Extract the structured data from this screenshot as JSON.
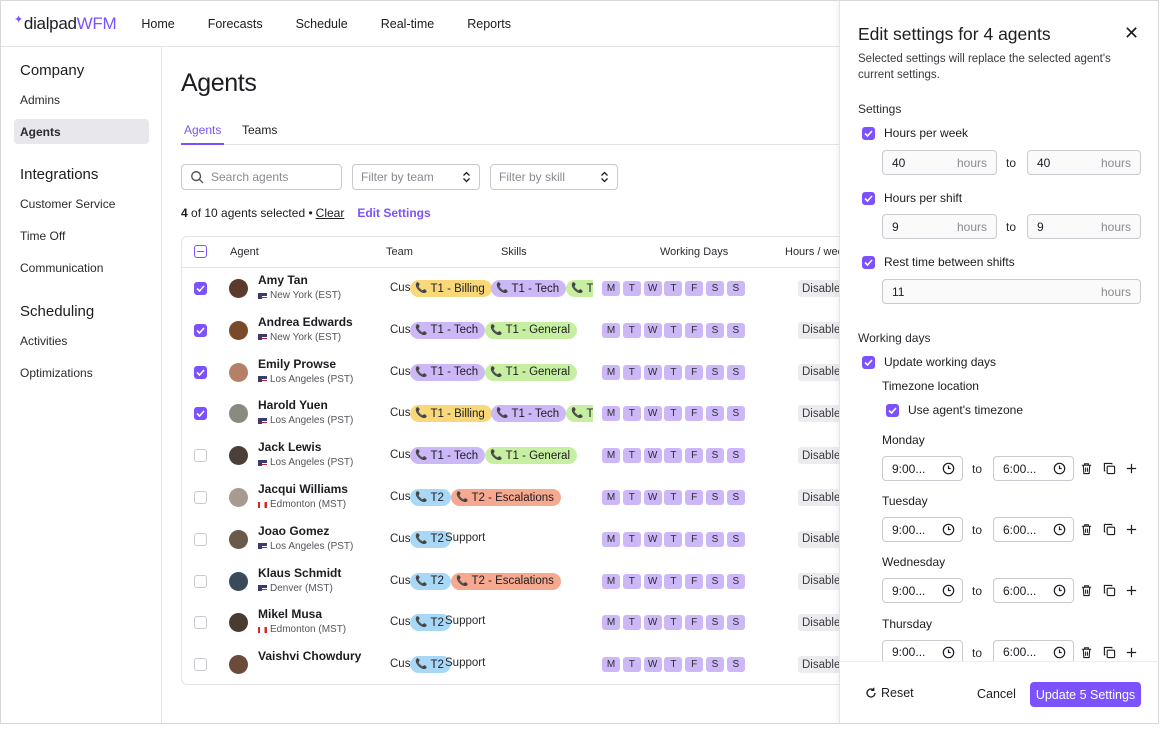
{
  "app": {
    "brand": "dialpad",
    "product": "WFM"
  },
  "nav": [
    "Home",
    "Forecasts",
    "Schedule",
    "Real-time",
    "Reports"
  ],
  "sidebar": {
    "groups": [
      {
        "heading": "Company",
        "items": [
          "Admins",
          "Agents"
        ]
      },
      {
        "heading": "Integrations",
        "items": [
          "Customer Service",
          "Time Off",
          "Communication"
        ]
      },
      {
        "heading": "Scheduling",
        "items": [
          "Activities",
          "Optimizations"
        ]
      }
    ],
    "active": "Agents"
  },
  "page": {
    "title": "Agents",
    "tabs": [
      "Agents",
      "Teams"
    ],
    "search_placeholder": "Search agents",
    "filter_team": "Filter by team",
    "filter_skill": "Filter by skill",
    "selected_count": "4",
    "selected_rest": "of 10 agents selected •",
    "clear": "Clear",
    "edit_settings": "Edit Settings"
  },
  "table": {
    "headers": {
      "agent": "Agent",
      "team": "Team",
      "skills": "Skills",
      "days": "Working Days",
      "hours": "Hours / week"
    },
    "days": [
      "M",
      "T",
      "W",
      "T",
      "F",
      "S",
      "S"
    ],
    "rows": [
      {
        "name": "Amy Tan",
        "location": "New York (EST)",
        "flag": "us",
        "checked": true,
        "team": "Cus",
        "hours": "Disable",
        "avatar": "#5a3a2a",
        "skills": [
          {
            "label": "T1 - Billing",
            "kind": "billing"
          },
          {
            "label": "T1 - Tech",
            "kind": "tech"
          },
          {
            "label": "T",
            "kind": "general"
          }
        ]
      },
      {
        "name": "Andrea Edwards",
        "location": "New York (EST)",
        "flag": "us",
        "checked": true,
        "team": "Cus",
        "hours": "Disable",
        "avatar": "#7a4a28",
        "skills": [
          {
            "label": "T1 - Tech",
            "kind": "tech"
          },
          {
            "label": "T1 - General",
            "kind": "general"
          }
        ]
      },
      {
        "name": "Emily Prowse",
        "location": "Los Angeles (PST)",
        "flag": "us",
        "checked": true,
        "team": "Cus",
        "hours": "Disable",
        "avatar": "#b58068",
        "skills": [
          {
            "label": "T1 - Tech",
            "kind": "tech"
          },
          {
            "label": "T1 - General",
            "kind": "general"
          }
        ]
      },
      {
        "name": "Harold Yuen",
        "location": "Los Angeles (PST)",
        "flag": "us",
        "checked": true,
        "team": "Cus",
        "hours": "Disable",
        "avatar": "#8a8a80",
        "skills": [
          {
            "label": "T1 - Billing",
            "kind": "billing"
          },
          {
            "label": "T1 - Tech",
            "kind": "tech"
          },
          {
            "label": "T",
            "kind": "general"
          }
        ]
      },
      {
        "name": "Jack Lewis",
        "location": "Los Angeles (PST)",
        "flag": "us",
        "checked": false,
        "team": "Cus",
        "hours": "Disable",
        "avatar": "#4a4038",
        "skills": [
          {
            "label": "T1 - Tech",
            "kind": "tech"
          },
          {
            "label": "T1 - General",
            "kind": "general"
          }
        ]
      },
      {
        "name": "Jacqui Williams",
        "location": "Edmonton (MST)",
        "flag": "ca",
        "checked": false,
        "team": "Cus",
        "hours": "Disable",
        "avatar": "#a89a90",
        "skills": [
          {
            "label": "T2",
            "kind": "t2"
          },
          {
            "label": "T2 - Escalations",
            "kind": "esc"
          }
        ]
      },
      {
        "name": "Joao Gomez",
        "location": "Los Angeles (PST)",
        "flag": "us",
        "checked": false,
        "team": "Cus",
        "hours": "Disable",
        "avatar": "#6a5a4a",
        "skills": [
          {
            "label": "T2",
            "kind": "t2"
          }
        ],
        "skill_text": "Support"
      },
      {
        "name": "Klaus Schmidt",
        "location": "Denver (MST)",
        "flag": "us",
        "checked": false,
        "team": "Cus",
        "hours": "Disable",
        "avatar": "#3a4a5a",
        "skills": [
          {
            "label": "T2",
            "kind": "t2"
          },
          {
            "label": "T2 - Escalations",
            "kind": "esc"
          }
        ]
      },
      {
        "name": "Mikel Musa",
        "location": "Edmonton (MST)",
        "flag": "ca",
        "checked": false,
        "team": "Cus",
        "hours": "Disable",
        "avatar": "#4a3a30",
        "skills": [
          {
            "label": "T2",
            "kind": "t2"
          }
        ],
        "skill_text": "Support"
      },
      {
        "name": "Vaishvi Chowdury",
        "location": "",
        "flag": "",
        "checked": false,
        "team": "Cus",
        "hours": "Disable",
        "avatar": "#6a4a3a",
        "skills": [
          {
            "label": "T2",
            "kind": "t2"
          }
        ],
        "skill_text": "Support"
      }
    ]
  },
  "panel": {
    "title": "Edit settings for 4 agents",
    "description": "Selected settings will replace the selected agent's current settings.",
    "settings_label": "Settings",
    "hours_per_week": {
      "label": "Hours per week",
      "from": "40",
      "to": "40",
      "unit": "hours"
    },
    "hours_per_shift": {
      "label": "Hours per shift",
      "from": "9",
      "to": "9",
      "unit": "hours"
    },
    "rest_time": {
      "label": "Rest time between shifts",
      "value": "11",
      "unit": "hours"
    },
    "to_word": "to",
    "working_days_label": "Working days",
    "update_working_days": "Update working days",
    "timezone_label": "Timezone location",
    "use_agent_timezone": "Use agent's timezone",
    "days": [
      {
        "name": "Monday",
        "start": "9:00...",
        "end": "6:00..."
      },
      {
        "name": "Tuesday",
        "start": "9:00...",
        "end": "6:00..."
      },
      {
        "name": "Wednesday",
        "start": "9:00...",
        "end": "6:00..."
      },
      {
        "name": "Thursday",
        "start": "9:00...",
        "end": "6:00..."
      }
    ],
    "reset": "Reset",
    "cancel": "Cancel",
    "update": "Update 5 Settings"
  },
  "colors": {
    "accent": "#7c52ff",
    "billing": "#f9d87a",
    "tech": "#cdb8f7",
    "general": "#c7efa2",
    "t2": "#a9d8f7",
    "escalations": "#f7a98f"
  }
}
